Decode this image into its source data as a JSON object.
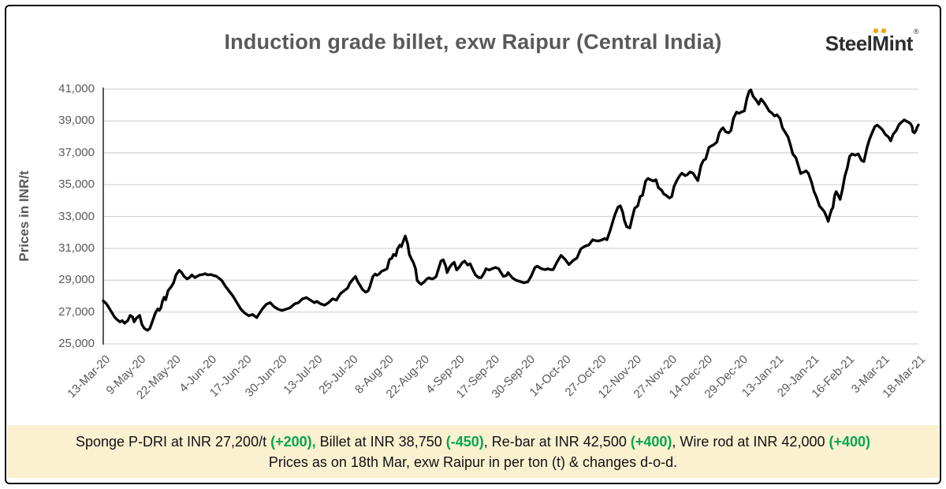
{
  "title": "Induction grade billet, exw Raipur (Central India)",
  "logo": {
    "part1": "Steel",
    "part2": "M",
    "part3": "int",
    "reg": "®"
  },
  "colors": {
    "grid": "#d6d6d6",
    "axis": "#595959",
    "label_gray": "#595959",
    "line": "#000000",
    "footer_bg": "#FBF1D1",
    "green": "#00A651",
    "logo_dark": "#2d2d2f",
    "logo_dot": "#F5A300",
    "border": "#0a0a0a"
  },
  "footer": {
    "line1": [
      {
        "text": "Sponge P-DRI at INR 27,200/t ",
        "highlight": false
      },
      {
        "text": "(+200),",
        "highlight": true
      },
      {
        "text": " Billet at INR 38,750 ",
        "highlight": false
      },
      {
        "text": "(-450)",
        "highlight": true
      },
      {
        "text": ", Re-bar at INR 42,500 ",
        "highlight": false
      },
      {
        "text": "(+400)",
        "highlight": true
      },
      {
        "text": ", Wire rod at INR 42,000 ",
        "highlight": false
      },
      {
        "text": "(+400)",
        "highlight": true
      }
    ],
    "line2": "Prices as on 18th Mar, exw Raipur in per ton (t) & changes d-o-d."
  },
  "chart_data": {
    "type": "line",
    "title": "Induction grade billet, exw Raipur (Central India)",
    "xlabel": "",
    "ylabel": "Prices in INR/t",
    "ylim": [
      25000,
      41000
    ],
    "ytick_step": 2000,
    "ytick_labels": [
      "25,000",
      "27,000",
      "29,000",
      "31,000",
      "33,000",
      "35,000",
      "37,000",
      "39,000",
      "41,000"
    ],
    "xtick_labels": [
      "13-Mar-20",
      "9-May-20",
      "22-May-20",
      "4-Jun-20",
      "17-Jun-20",
      "30-Jun-20",
      "13-Jul-20",
      "25-Jul-20",
      "8-Aug-20",
      "22-Aug-20",
      "4-Sep-20",
      "17-Sep-20",
      "30-Sep-20",
      "14-Oct-20",
      "27-Oct-20",
      "12-Nov-20",
      "27-Nov-20",
      "14-Dec-20",
      "29-Dec-20",
      "13-Jan-21",
      "29-Jan-21",
      "16-Feb-21",
      "3-Mar-21",
      "18-Mar-21"
    ],
    "grid": "horizontal",
    "legend": "none",
    "line_color": "#000000",
    "series_name": "Induction grade billet price (INR/t)",
    "last_value": 38750,
    "points": [
      [
        0.0,
        27700
      ],
      [
        0.0039,
        27520
      ],
      [
        0.0068,
        27280
      ],
      [
        0.0107,
        26950
      ],
      [
        0.0136,
        26700
      ],
      [
        0.0165,
        26540
      ],
      [
        0.0204,
        26380
      ],
      [
        0.0233,
        26460
      ],
      [
        0.0262,
        26300
      ],
      [
        0.0301,
        26460
      ],
      [
        0.033,
        26790
      ],
      [
        0.0359,
        26700
      ],
      [
        0.0378,
        26380
      ],
      [
        0.0407,
        26620
      ],
      [
        0.0446,
        26790
      ],
      [
        0.0475,
        26210
      ],
      [
        0.0504,
        25970
      ],
      [
        0.0543,
        25850
      ],
      [
        0.0572,
        25970
      ],
      [
        0.0601,
        26380
      ],
      [
        0.064,
        26950
      ],
      [
        0.0669,
        27200
      ],
      [
        0.0689,
        27110
      ],
      [
        0.0708,
        27280
      ],
      [
        0.0727,
        27690
      ],
      [
        0.0747,
        27930
      ],
      [
        0.0766,
        27770
      ],
      [
        0.0795,
        28340
      ],
      [
        0.0834,
        28590
      ],
      [
        0.0863,
        28840
      ],
      [
        0.0892,
        29330
      ],
      [
        0.0931,
        29620
      ],
      [
        0.096,
        29490
      ],
      [
        0.0989,
        29250
      ],
      [
        0.1028,
        29080
      ],
      [
        0.1057,
        29160
      ],
      [
        0.1086,
        29330
      ],
      [
        0.1125,
        29160
      ],
      [
        0.1154,
        29250
      ],
      [
        0.1183,
        29330
      ],
      [
        0.1222,
        29360
      ],
      [
        0.1251,
        29410
      ],
      [
        0.128,
        29330
      ],
      [
        0.1319,
        29360
      ],
      [
        0.1348,
        29300
      ],
      [
        0.1387,
        29250
      ],
      [
        0.1426,
        29100
      ],
      [
        0.1455,
        28980
      ],
      [
        0.1494,
        28650
      ],
      [
        0.1542,
        28330
      ],
      [
        0.1591,
        28000
      ],
      [
        0.1639,
        27590
      ],
      [
        0.1688,
        27180
      ],
      [
        0.1736,
        26930
      ],
      [
        0.1785,
        26770
      ],
      [
        0.1833,
        26850
      ],
      [
        0.1882,
        26650
      ],
      [
        0.195,
        27180
      ],
      [
        0.1998,
        27480
      ],
      [
        0.2047,
        27590
      ],
      [
        0.2095,
        27340
      ],
      [
        0.2144,
        27180
      ],
      [
        0.2192,
        27100
      ],
      [
        0.2241,
        27180
      ],
      [
        0.2289,
        27260
      ],
      [
        0.2347,
        27510
      ],
      [
        0.2396,
        27590
      ],
      [
        0.2444,
        27830
      ],
      [
        0.2493,
        27910
      ],
      [
        0.2541,
        27750
      ],
      [
        0.259,
        27590
      ],
      [
        0.2619,
        27670
      ],
      [
        0.2667,
        27510
      ],
      [
        0.2716,
        27430
      ],
      [
        0.2764,
        27590
      ],
      [
        0.2813,
        27830
      ],
      [
        0.2861,
        27750
      ],
      [
        0.291,
        28160
      ],
      [
        0.2958,
        28350
      ],
      [
        0.2997,
        28500
      ],
      [
        0.3026,
        28820
      ],
      [
        0.3065,
        29070
      ],
      [
        0.3094,
        29230
      ],
      [
        0.3123,
        28900
      ],
      [
        0.3152,
        28660
      ],
      [
        0.3181,
        28410
      ],
      [
        0.322,
        28250
      ],
      [
        0.3249,
        28330
      ],
      [
        0.3269,
        28570
      ],
      [
        0.3308,
        29230
      ],
      [
        0.3337,
        29390
      ],
      [
        0.3356,
        29310
      ],
      [
        0.3385,
        29390
      ],
      [
        0.3414,
        29560
      ],
      [
        0.3453,
        29640
      ],
      [
        0.3482,
        29720
      ],
      [
        0.3511,
        30300
      ],
      [
        0.354,
        30380
      ],
      [
        0.356,
        30620
      ],
      [
        0.3589,
        30540
      ],
      [
        0.3608,
        30950
      ],
      [
        0.3637,
        31200
      ],
      [
        0.3657,
        31110
      ],
      [
        0.3686,
        31520
      ],
      [
        0.3705,
        31770
      ],
      [
        0.3734,
        31280
      ],
      [
        0.3754,
        30620
      ],
      [
        0.3783,
        30300
      ],
      [
        0.3802,
        30140
      ],
      [
        0.3831,
        29720
      ],
      [
        0.3851,
        28980
      ],
      [
        0.388,
        28820
      ],
      [
        0.3899,
        28740
      ],
      [
        0.3938,
        28900
      ],
      [
        0.3967,
        29070
      ],
      [
        0.3996,
        29150
      ],
      [
        0.4035,
        29070
      ],
      [
        0.4064,
        29150
      ],
      [
        0.4084,
        29240
      ],
      [
        0.4113,
        29720
      ],
      [
        0.4142,
        30200
      ],
      [
        0.4171,
        30280
      ],
      [
        0.42,
        29900
      ],
      [
        0.4219,
        29480
      ],
      [
        0.4248,
        29800
      ],
      [
        0.4277,
        30000
      ],
      [
        0.4306,
        30120
      ],
      [
        0.4336,
        29640
      ],
      [
        0.4365,
        29800
      ],
      [
        0.4404,
        30100
      ],
      [
        0.4433,
        30200
      ],
      [
        0.4471,
        29950
      ],
      [
        0.45,
        30040
      ],
      [
        0.4539,
        29600
      ],
      [
        0.4568,
        29320
      ],
      [
        0.4607,
        29160
      ],
      [
        0.4636,
        29160
      ],
      [
        0.4675,
        29480
      ],
      [
        0.4694,
        29720
      ],
      [
        0.4733,
        29640
      ],
      [
        0.4772,
        29720
      ],
      [
        0.4811,
        29800
      ],
      [
        0.485,
        29720
      ],
      [
        0.4879,
        29480
      ],
      [
        0.4908,
        29240
      ],
      [
        0.4947,
        29300
      ],
      [
        0.4966,
        29480
      ],
      [
        0.5015,
        29160
      ],
      [
        0.5063,
        29000
      ],
      [
        0.5112,
        28920
      ],
      [
        0.516,
        28840
      ],
      [
        0.5209,
        28900
      ],
      [
        0.5248,
        29240
      ],
      [
        0.5296,
        29800
      ],
      [
        0.5325,
        29880
      ],
      [
        0.5374,
        29720
      ],
      [
        0.5422,
        29660
      ],
      [
        0.5451,
        29720
      ],
      [
        0.549,
        29660
      ],
      [
        0.5519,
        29660
      ],
      [
        0.5568,
        30150
      ],
      [
        0.5616,
        30560
      ],
      [
        0.5665,
        30310
      ],
      [
        0.5713,
        29980
      ],
      [
        0.5762,
        30230
      ],
      [
        0.581,
        30390
      ],
      [
        0.5859,
        30970
      ],
      [
        0.5907,
        31130
      ],
      [
        0.5956,
        31210
      ],
      [
        0.6004,
        31540
      ],
      [
        0.6033,
        31490
      ],
      [
        0.6072,
        31460
      ],
      [
        0.6121,
        31540
      ],
      [
        0.615,
        31620
      ],
      [
        0.6179,
        31540
      ],
      [
        0.6218,
        32110
      ],
      [
        0.6247,
        32610
      ],
      [
        0.6276,
        33100
      ],
      [
        0.6314,
        33590
      ],
      [
        0.6343,
        33670
      ],
      [
        0.6373,
        33260
      ],
      [
        0.6392,
        32770
      ],
      [
        0.6421,
        32360
      ],
      [
        0.646,
        32280
      ],
      [
        0.6489,
        32930
      ],
      [
        0.6518,
        33510
      ],
      [
        0.6557,
        33670
      ],
      [
        0.6586,
        34250
      ],
      [
        0.6615,
        34330
      ],
      [
        0.6654,
        35230
      ],
      [
        0.6683,
        35390
      ],
      [
        0.6712,
        35310
      ],
      [
        0.6751,
        35230
      ],
      [
        0.678,
        35310
      ],
      [
        0.6809,
        34820
      ],
      [
        0.6848,
        34660
      ],
      [
        0.6877,
        34410
      ],
      [
        0.6906,
        34330
      ],
      [
        0.6945,
        34160
      ],
      [
        0.6974,
        34250
      ],
      [
        0.7003,
        34900
      ],
      [
        0.7042,
        35310
      ],
      [
        0.7071,
        35560
      ],
      [
        0.71,
        35720
      ],
      [
        0.7139,
        35560
      ],
      [
        0.7168,
        35640
      ],
      [
        0.7197,
        35800
      ],
      [
        0.7236,
        35720
      ],
      [
        0.7265,
        35470
      ],
      [
        0.7294,
        35250
      ],
      [
        0.7333,
        36200
      ],
      [
        0.7362,
        36520
      ],
      [
        0.7391,
        36610
      ],
      [
        0.743,
        37340
      ],
      [
        0.7459,
        37430
      ],
      [
        0.7488,
        37510
      ],
      [
        0.7527,
        37670
      ],
      [
        0.7556,
        38250
      ],
      [
        0.7585,
        38490
      ],
      [
        0.7604,
        38570
      ],
      [
        0.7633,
        38330
      ],
      [
        0.7672,
        38250
      ],
      [
        0.7701,
        38410
      ],
      [
        0.773,
        39150
      ],
      [
        0.7769,
        39560
      ],
      [
        0.7798,
        39480
      ],
      [
        0.7827,
        39560
      ],
      [
        0.7866,
        39640
      ],
      [
        0.7895,
        40380
      ],
      [
        0.7924,
        40870
      ],
      [
        0.7944,
        40950
      ],
      [
        0.7973,
        40540
      ],
      [
        0.8012,
        40300
      ],
      [
        0.8041,
        40050
      ],
      [
        0.807,
        40380
      ],
      [
        0.8109,
        40130
      ],
      [
        0.8138,
        39890
      ],
      [
        0.8167,
        39640
      ],
      [
        0.8206,
        39480
      ],
      [
        0.8235,
        39310
      ],
      [
        0.8264,
        39390
      ],
      [
        0.8303,
        39150
      ],
      [
        0.8332,
        38570
      ],
      [
        0.8361,
        38330
      ],
      [
        0.84,
        38000
      ],
      [
        0.8429,
        37510
      ],
      [
        0.8458,
        36930
      ],
      [
        0.8497,
        36690
      ],
      [
        0.8526,
        36200
      ],
      [
        0.8555,
        35700
      ],
      [
        0.8594,
        35790
      ],
      [
        0.8623,
        35870
      ],
      [
        0.8652,
        35700
      ],
      [
        0.8691,
        35130
      ],
      [
        0.872,
        34560
      ],
      [
        0.8749,
        34230
      ],
      [
        0.8787,
        33660
      ],
      [
        0.8816,
        33490
      ],
      [
        0.8846,
        33300
      ],
      [
        0.8875,
        32950
      ],
      [
        0.8894,
        32700
      ],
      [
        0.8913,
        33080
      ],
      [
        0.8933,
        33410
      ],
      [
        0.8952,
        33570
      ],
      [
        0.8972,
        34310
      ],
      [
        0.8991,
        34560
      ],
      [
        0.901,
        34390
      ],
      [
        0.904,
        34070
      ],
      [
        0.9069,
        34720
      ],
      [
        0.9098,
        35540
      ],
      [
        0.9127,
        36030
      ],
      [
        0.9156,
        36770
      ],
      [
        0.9185,
        36930
      ],
      [
        0.9224,
        36850
      ],
      [
        0.9263,
        36930
      ],
      [
        0.9302,
        36520
      ],
      [
        0.9331,
        36450
      ],
      [
        0.937,
        37340
      ],
      [
        0.9399,
        37840
      ],
      [
        0.9438,
        38330
      ],
      [
        0.9467,
        38660
      ],
      [
        0.9496,
        38740
      ],
      [
        0.9535,
        38570
      ],
      [
        0.9564,
        38410
      ],
      [
        0.9593,
        38160
      ],
      [
        0.9632,
        38000
      ],
      [
        0.9661,
        37750
      ],
      [
        0.969,
        38160
      ],
      [
        0.9729,
        38410
      ],
      [
        0.9758,
        38740
      ],
      [
        0.9787,
        38900
      ],
      [
        0.9826,
        39070
      ],
      [
        0.9855,
        38980
      ],
      [
        0.9884,
        38900
      ],
      [
        0.9903,
        38820
      ],
      [
        0.9922,
        38660
      ],
      [
        0.9932,
        38330
      ],
      [
        0.9951,
        38250
      ],
      [
        0.9971,
        38410
      ],
      [
        0.9981,
        38570
      ],
      [
        1.0,
        38750
      ]
    ]
  }
}
